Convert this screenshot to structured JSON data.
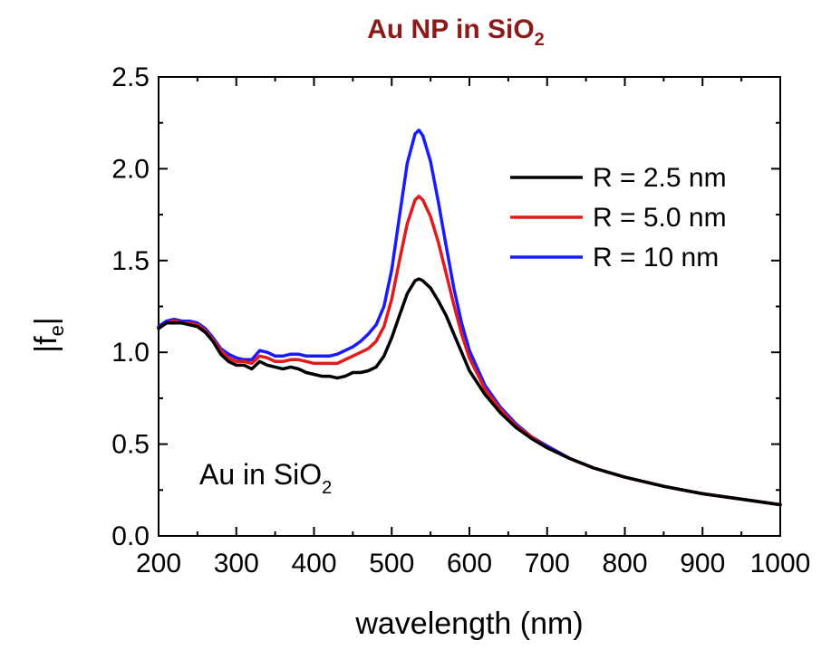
{
  "chart_data": {
    "type": "line",
    "title": "Au NP in SiO",
    "title_subscript": "2",
    "xlabel": "wavelength (nm)",
    "ylabel": "|f",
    "ylabel_subscript": "e",
    "ylabel_suffix": "|",
    "xlim": [
      200,
      1000
    ],
    "ylim": [
      0,
      2.5
    ],
    "xticks": [
      200,
      300,
      400,
      500,
      600,
      700,
      800,
      900,
      1000
    ],
    "xtick_labels": [
      "200",
      "300",
      "400",
      "500",
      "600",
      "700",
      "800",
      "900",
      "1000"
    ],
    "yticks": [
      0,
      0.5,
      1,
      1.5,
      2,
      2.5
    ],
    "ytick_labels": [
      "0.0",
      "0.5",
      "1.0",
      "1.5",
      "2.0",
      "2.5"
    ],
    "grid": false,
    "legend_position": "top-right",
    "annotation": {
      "text": "Au in SiO",
      "subscript": "2"
    },
    "series": [
      {
        "name": "R = 2.5 nm",
        "color": "#000000",
        "x": [
          200,
          210,
          220,
          230,
          240,
          250,
          260,
          270,
          280,
          290,
          300,
          310,
          320,
          330,
          340,
          350,
          360,
          370,
          380,
          390,
          400,
          410,
          420,
          430,
          440,
          450,
          460,
          470,
          480,
          490,
          500,
          510,
          520,
          530,
          535,
          540,
          550,
          560,
          570,
          580,
          590,
          600,
          620,
          640,
          660,
          680,
          700,
          730,
          760,
          800,
          850,
          900,
          950,
          1000
        ],
        "y": [
          1.13,
          1.16,
          1.16,
          1.16,
          1.15,
          1.14,
          1.11,
          1.06,
          0.99,
          0.95,
          0.93,
          0.93,
          0.91,
          0.95,
          0.93,
          0.92,
          0.91,
          0.92,
          0.91,
          0.89,
          0.88,
          0.87,
          0.87,
          0.86,
          0.87,
          0.89,
          0.89,
          0.9,
          0.92,
          0.98,
          1.08,
          1.2,
          1.32,
          1.39,
          1.4,
          1.39,
          1.35,
          1.28,
          1.2,
          1.1,
          1.0,
          0.9,
          0.77,
          0.67,
          0.59,
          0.53,
          0.48,
          0.42,
          0.37,
          0.32,
          0.27,
          0.23,
          0.2,
          0.17
        ]
      },
      {
        "name": "R = 5.0 nm",
        "color": "#e31a1c",
        "x": [
          200,
          210,
          220,
          230,
          240,
          250,
          260,
          270,
          280,
          290,
          300,
          310,
          320,
          330,
          340,
          350,
          360,
          370,
          380,
          390,
          400,
          410,
          420,
          430,
          440,
          450,
          460,
          470,
          480,
          490,
          500,
          510,
          520,
          530,
          535,
          540,
          550,
          560,
          570,
          580,
          590,
          600,
          620,
          640,
          660,
          680,
          700,
          730,
          760,
          800,
          850,
          900,
          950,
          1000
        ],
        "y": [
          1.13,
          1.16,
          1.17,
          1.16,
          1.16,
          1.15,
          1.12,
          1.07,
          1.01,
          0.97,
          0.95,
          0.95,
          0.94,
          0.98,
          0.97,
          0.95,
          0.95,
          0.96,
          0.96,
          0.95,
          0.94,
          0.94,
          0.94,
          0.94,
          0.96,
          0.98,
          1.0,
          1.02,
          1.06,
          1.14,
          1.29,
          1.5,
          1.7,
          1.83,
          1.85,
          1.83,
          1.74,
          1.6,
          1.43,
          1.26,
          1.1,
          0.97,
          0.8,
          0.69,
          0.6,
          0.54,
          0.48,
          0.42,
          0.37,
          0.32,
          0.27,
          0.23,
          0.2,
          0.17
        ]
      },
      {
        "name": "R = 10 nm",
        "color": "#1a1aff",
        "x": [
          200,
          210,
          220,
          230,
          240,
          250,
          260,
          270,
          280,
          290,
          300,
          310,
          320,
          330,
          340,
          350,
          360,
          370,
          380,
          390,
          400,
          410,
          420,
          430,
          440,
          450,
          460,
          470,
          480,
          490,
          500,
          510,
          520,
          530,
          535,
          540,
          550,
          560,
          570,
          580,
          590,
          600,
          620,
          640,
          660,
          680,
          700,
          730,
          760,
          800,
          850,
          900,
          950,
          1000
        ],
        "y": [
          1.14,
          1.17,
          1.18,
          1.17,
          1.17,
          1.16,
          1.13,
          1.08,
          1.02,
          0.99,
          0.97,
          0.96,
          0.96,
          1.01,
          1.0,
          0.98,
          0.98,
          0.99,
          0.99,
          0.98,
          0.98,
          0.98,
          0.98,
          0.99,
          1.01,
          1.03,
          1.06,
          1.1,
          1.15,
          1.25,
          1.45,
          1.74,
          2.03,
          2.19,
          2.21,
          2.18,
          2.04,
          1.82,
          1.58,
          1.35,
          1.16,
          1.01,
          0.82,
          0.7,
          0.61,
          0.54,
          0.49,
          0.42,
          0.37,
          0.32,
          0.27,
          0.23,
          0.2,
          0.17
        ]
      }
    ]
  }
}
